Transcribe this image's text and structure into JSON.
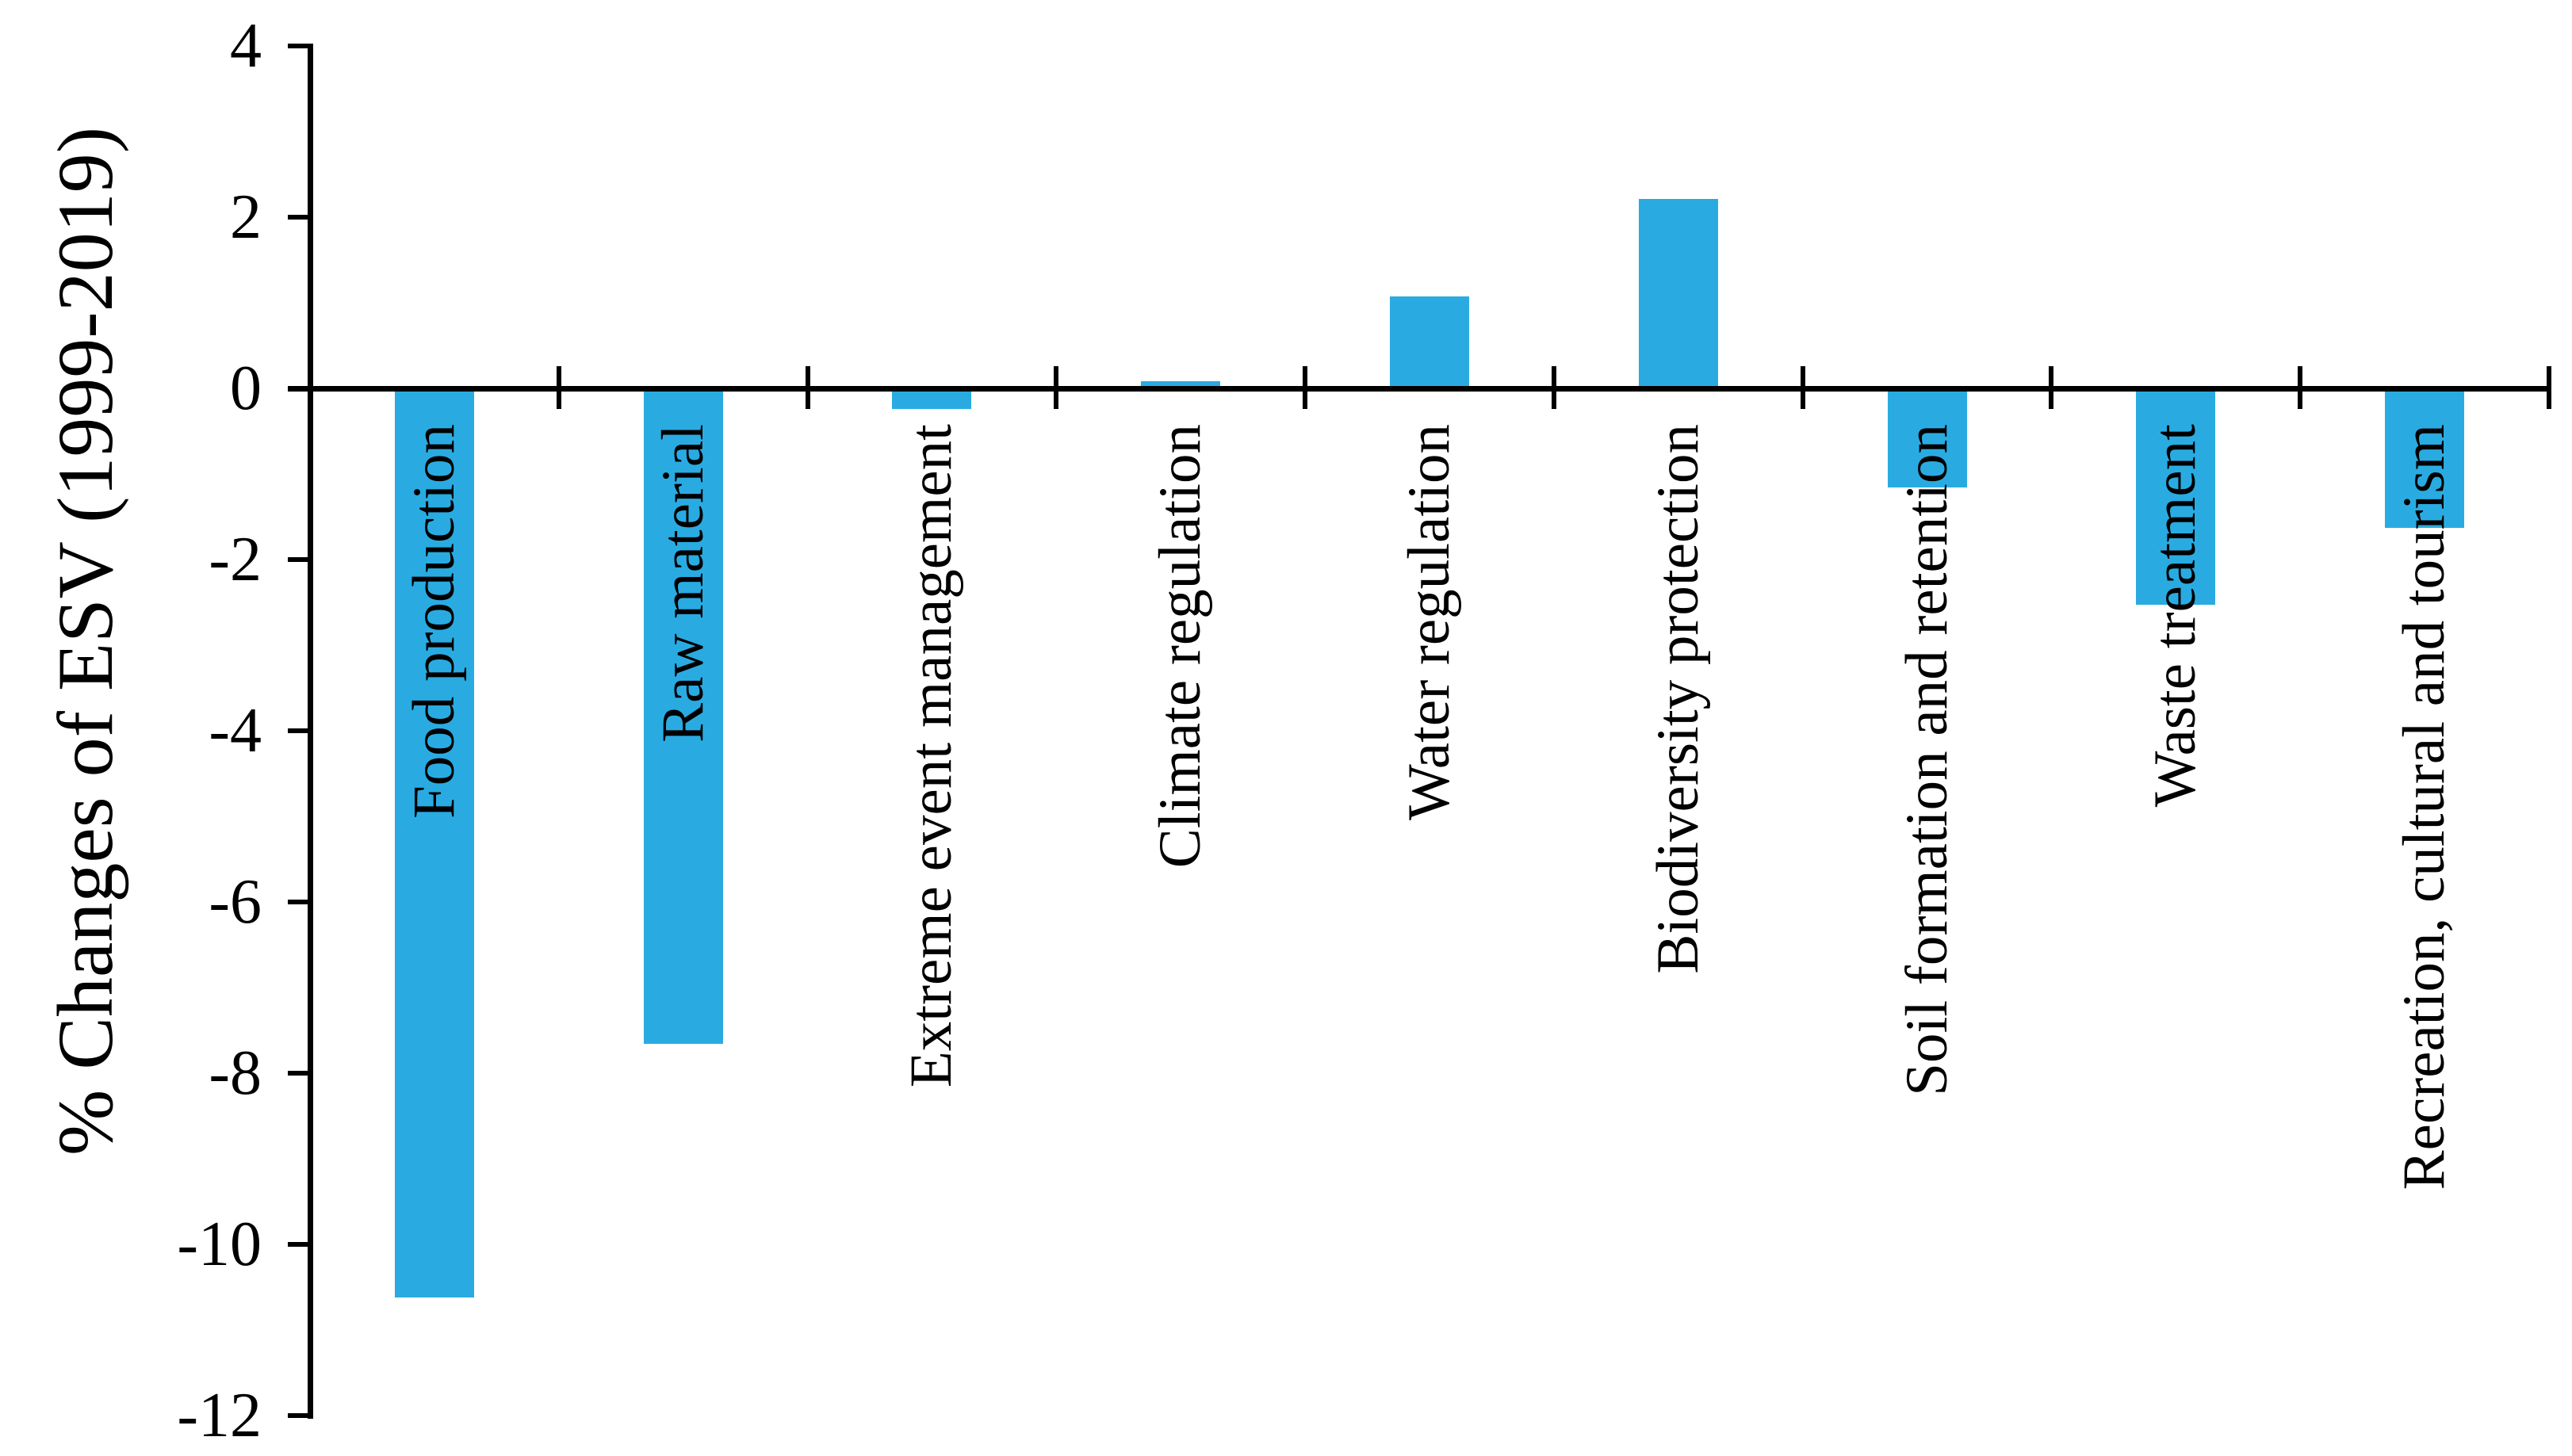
{
  "chart_data": {
    "type": "bar",
    "title": "",
    "xlabel": "",
    "ylabel": "% Changes of ESV (1999-2019)",
    "categories": [
      "Food production",
      "Raw material",
      "Extreme event management",
      "Climate regulation",
      "Water regulation",
      "Biodiversity protection",
      "Soil formation and retention",
      "Waste treatment",
      "Recreation, cultural and tourism"
    ],
    "values": [
      -10.62,
      -7.66,
      -0.24,
      0.08,
      1.07,
      2.21,
      -1.16,
      -2.53,
      -1.63
    ],
    "ylim": [
      -12,
      4
    ],
    "yticks": [
      4,
      2,
      0,
      -2,
      -4,
      -6,
      -8,
      -10,
      -12
    ],
    "grid": false,
    "legend": "none",
    "category_label_rotation_deg": 90,
    "bar_color": "#29ABE2",
    "axis_color": "#000000",
    "text_color": "#000000",
    "background_color": "#FFFFFF"
  }
}
